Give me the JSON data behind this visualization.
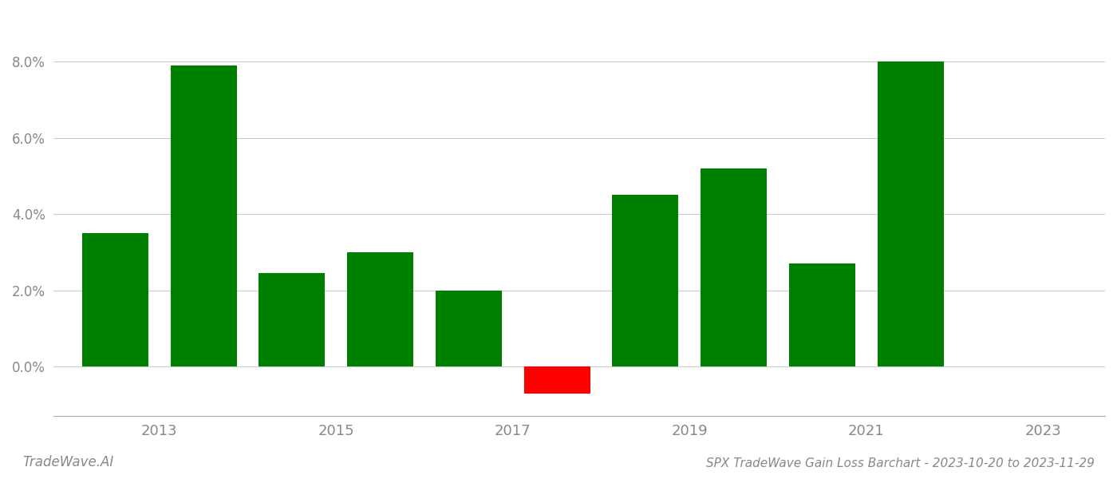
{
  "years": [
    2013,
    2014,
    2015,
    2016,
    2017,
    2018,
    2019,
    2020,
    2021,
    2022
  ],
  "values": [
    0.035,
    0.079,
    0.0245,
    0.03,
    0.02,
    -0.007,
    0.045,
    0.052,
    0.027,
    0.08
  ],
  "bar_color_positive": "#008000",
  "bar_color_negative": "#ff0000",
  "title": "SPX TradeWave Gain Loss Barchart - 2023-10-20 to 2023-11-29",
  "watermark": "TradeWave.AI",
  "ylim_min": -0.013,
  "ylim_max": 0.093,
  "background_color": "#ffffff",
  "grid_color": "#cccccc",
  "tick_label_color": "#888888",
  "title_color": "#888888",
  "watermark_color": "#888888",
  "xtick_positions": [
    2013.5,
    2015.5,
    2017.5,
    2019.5,
    2021.5,
    2023.5
  ],
  "xtick_labels": [
    "2013",
    "2015",
    "2017",
    "2019",
    "2021",
    "2023"
  ],
  "xlim_min": 2012.3,
  "xlim_max": 2024.2,
  "bar_width": 0.75,
  "yticks": [
    0.0,
    0.02,
    0.04,
    0.06,
    0.08
  ],
  "tick_fontsize": 13,
  "title_fontsize": 11,
  "watermark_fontsize": 12
}
